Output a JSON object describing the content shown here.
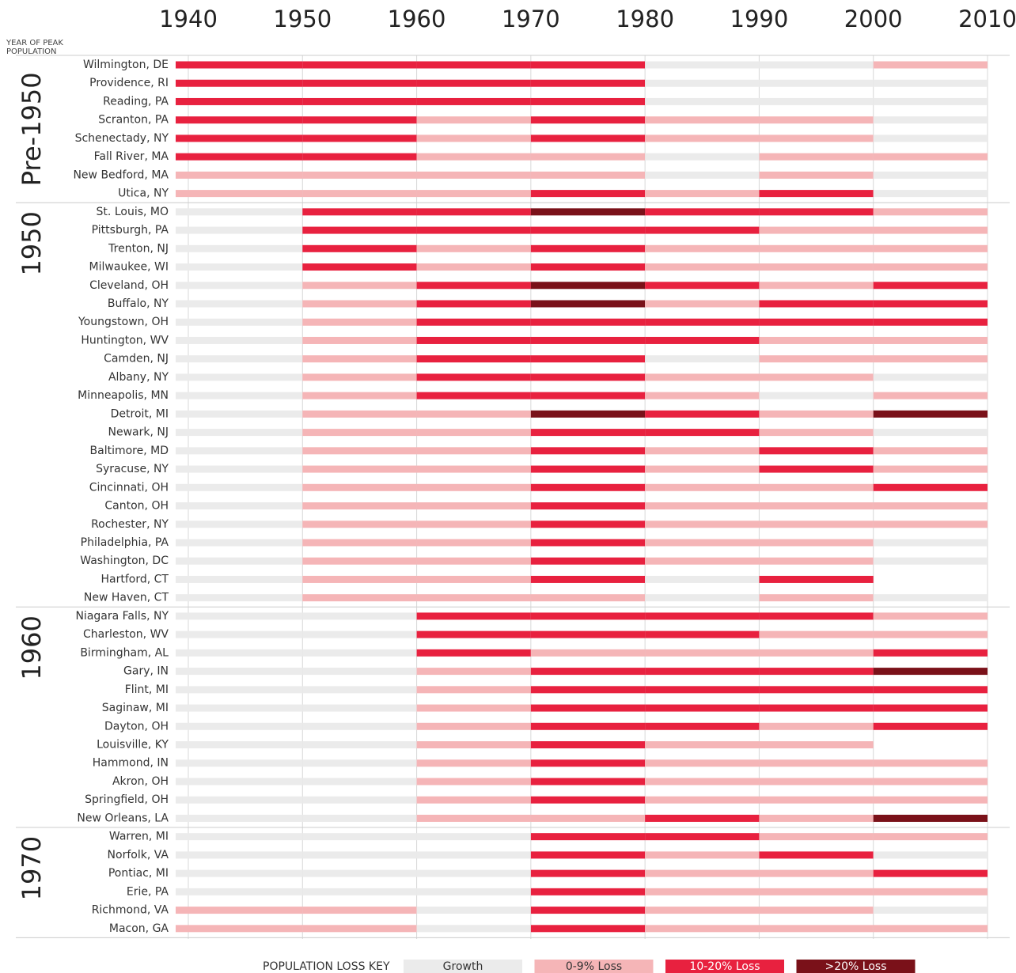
{
  "chart_data": {
    "type": "timeline",
    "header": [
      "YEAR OF PEAK",
      "POPULATION"
    ],
    "xlim": [
      1940,
      2010
    ],
    "xticks": [
      1940,
      1950,
      1960,
      1970,
      1980,
      1990,
      2000,
      2010
    ],
    "legend_title": "POPULATION LOSS KEY",
    "legend": [
      {
        "name": "Growth",
        "color": "#ebebeb"
      },
      {
        "name": "0-9% Loss",
        "color": "#f5b5b7"
      },
      {
        "name": "10-20% Loss",
        "color": "#e8213f"
      },
      {
        "name": ">20% Loss",
        "color": "#7a1119"
      }
    ],
    "groups": [
      {
        "name": "Pre-1950",
        "cities": [
          {
            "name": "Wilmington, DE",
            "levels": [
              2,
              2,
              2,
              2,
              0,
              0,
              1
            ]
          },
          {
            "name": "Providence, RI",
            "levels": [
              2,
              2,
              2,
              2,
              0,
              0,
              0
            ]
          },
          {
            "name": "Reading, PA",
            "levels": [
              2,
              2,
              2,
              2,
              0,
              0,
              0
            ]
          },
          {
            "name": "Scranton, PA",
            "levels": [
              2,
              2,
              1,
              2,
              1,
              1,
              0
            ]
          },
          {
            "name": "Schenectady, NY",
            "levels": [
              2,
              2,
              1,
              2,
              1,
              1,
              0
            ]
          },
          {
            "name": "Fall River, MA",
            "levels": [
              2,
              2,
              1,
              1,
              0,
              1,
              1
            ]
          },
          {
            "name": "New Bedford, MA",
            "levels": [
              1,
              1,
              1,
              1,
              0,
              1,
              0
            ]
          },
          {
            "name": "Utica,  NY",
            "levels": [
              1,
              1,
              1,
              2,
              1,
              2,
              0
            ]
          }
        ]
      },
      {
        "name": "1950",
        "cities": [
          {
            "name": "St. Louis, MO",
            "levels": [
              0,
              2,
              2,
              3,
              2,
              2,
              1
            ]
          },
          {
            "name": "Pittsburgh, PA",
            "levels": [
              0,
              2,
              2,
              2,
              2,
              1,
              1
            ]
          },
          {
            "name": "Trenton, NJ",
            "levels": [
              0,
              2,
              1,
              2,
              1,
              1,
              1
            ]
          },
          {
            "name": "Milwaukee, WI",
            "levels": [
              0,
              2,
              1,
              2,
              1,
              1,
              1
            ]
          },
          {
            "name": "Cleveland, OH",
            "levels": [
              0,
              1,
              2,
              3,
              2,
              1,
              2
            ]
          },
          {
            "name": "Buffalo, NY",
            "levels": [
              0,
              1,
              2,
              3,
              1,
              2,
              2
            ]
          },
          {
            "name": "Youngstown, OH",
            "levels": [
              0,
              1,
              2,
              2,
              2,
              2,
              2
            ]
          },
          {
            "name": "Huntington, WV",
            "levels": [
              0,
              1,
              2,
              2,
              2,
              1,
              1
            ]
          },
          {
            "name": "Camden, NJ",
            "levels": [
              0,
              1,
              2,
              2,
              0,
              1,
              1
            ]
          },
          {
            "name": "Albany, NY",
            "levels": [
              0,
              1,
              2,
              2,
              1,
              1,
              0
            ]
          },
          {
            "name": "Minneapolis, MN",
            "levels": [
              0,
              1,
              2,
              2,
              1,
              0,
              1
            ]
          },
          {
            "name": "Detroit, MI",
            "levels": [
              0,
              1,
              1,
              3,
              2,
              1,
              3
            ]
          },
          {
            "name": "Newark, NJ",
            "levels": [
              0,
              1,
              1,
              2,
              2,
              1,
              0
            ]
          },
          {
            "name": "Baltimore, MD",
            "levels": [
              0,
              1,
              1,
              2,
              1,
              2,
              1
            ]
          },
          {
            "name": "Syracuse, NY",
            "levels": [
              0,
              1,
              1,
              2,
              1,
              2,
              1
            ]
          },
          {
            "name": "Cincinnati, OH",
            "levels": [
              0,
              1,
              1,
              2,
              1,
              1,
              2
            ]
          },
          {
            "name": "Canton, OH",
            "levels": [
              0,
              1,
              1,
              2,
              1,
              1,
              1
            ]
          },
          {
            "name": "Rochester, NY",
            "levels": [
              0,
              1,
              1,
              2,
              1,
              1,
              1
            ]
          },
          {
            "name": "Philadelphia, PA",
            "levels": [
              0,
              1,
              1,
              2,
              1,
              1,
              0
            ]
          },
          {
            "name": "Washington, DC",
            "levels": [
              0,
              1,
              1,
              2,
              1,
              1,
              0
            ]
          },
          {
            "name": "Hartford, CT",
            "levels": [
              0,
              1,
              1,
              2,
              0,
              2,
              null
            ]
          },
          {
            "name": "New Haven, CT",
            "levels": [
              0,
              1,
              1,
              1,
              0,
              1,
              0
            ]
          }
        ]
      },
      {
        "name": "1960",
        "cities": [
          {
            "name": "Niagara Falls, NY",
            "levels": [
              0,
              0,
              2,
              2,
              2,
              2,
              1
            ]
          },
          {
            "name": "Charleston, WV",
            "levels": [
              0,
              0,
              2,
              2,
              2,
              1,
              1
            ]
          },
          {
            "name": "Birmingham, AL",
            "levels": [
              0,
              0,
              2,
              1,
              1,
              1,
              2
            ]
          },
          {
            "name": "Gary, IN",
            "levels": [
              0,
              0,
              1,
              2,
              2,
              2,
              3
            ]
          },
          {
            "name": "Flint, MI",
            "levels": [
              0,
              0,
              1,
              2,
              2,
              2,
              2
            ]
          },
          {
            "name": "Saginaw, MI",
            "levels": [
              0,
              0,
              1,
              2,
              2,
              2,
              2
            ]
          },
          {
            "name": "Dayton, OH",
            "levels": [
              0,
              0,
              1,
              2,
              2,
              1,
              2
            ]
          },
          {
            "name": "Louisville, KY",
            "levels": [
              0,
              0,
              1,
              2,
              1,
              1,
              null
            ]
          },
          {
            "name": "Hammond, IN",
            "levels": [
              0,
              0,
              1,
              2,
              1,
              1,
              1
            ]
          },
          {
            "name": "Akron, OH",
            "levels": [
              0,
              0,
              1,
              2,
              1,
              1,
              1
            ]
          },
          {
            "name": "Springfield, OH",
            "levels": [
              0,
              0,
              1,
              2,
              1,
              1,
              1
            ]
          },
          {
            "name": "New Orleans, LA",
            "levels": [
              0,
              0,
              1,
              1,
              2,
              1,
              3
            ]
          }
        ]
      },
      {
        "name": "1970",
        "cities": [
          {
            "name": "Warren, MI",
            "levels": [
              0,
              0,
              0,
              2,
              2,
              1,
              1
            ]
          },
          {
            "name": "Norfolk, VA",
            "levels": [
              0,
              0,
              0,
              2,
              1,
              2,
              0
            ]
          },
          {
            "name": "Pontiac, MI",
            "levels": [
              0,
              0,
              0,
              2,
              1,
              1,
              2
            ]
          },
          {
            "name": "Erie, PA",
            "levels": [
              0,
              0,
              0,
              2,
              1,
              1,
              1
            ]
          },
          {
            "name": "Richmond, VA",
            "levels": [
              1,
              1,
              0,
              2,
              1,
              1,
              0
            ]
          },
          {
            "name": "Macon, GA",
            "levels": [
              1,
              1,
              0,
              2,
              1,
              1,
              1
            ]
          }
        ]
      }
    ]
  }
}
